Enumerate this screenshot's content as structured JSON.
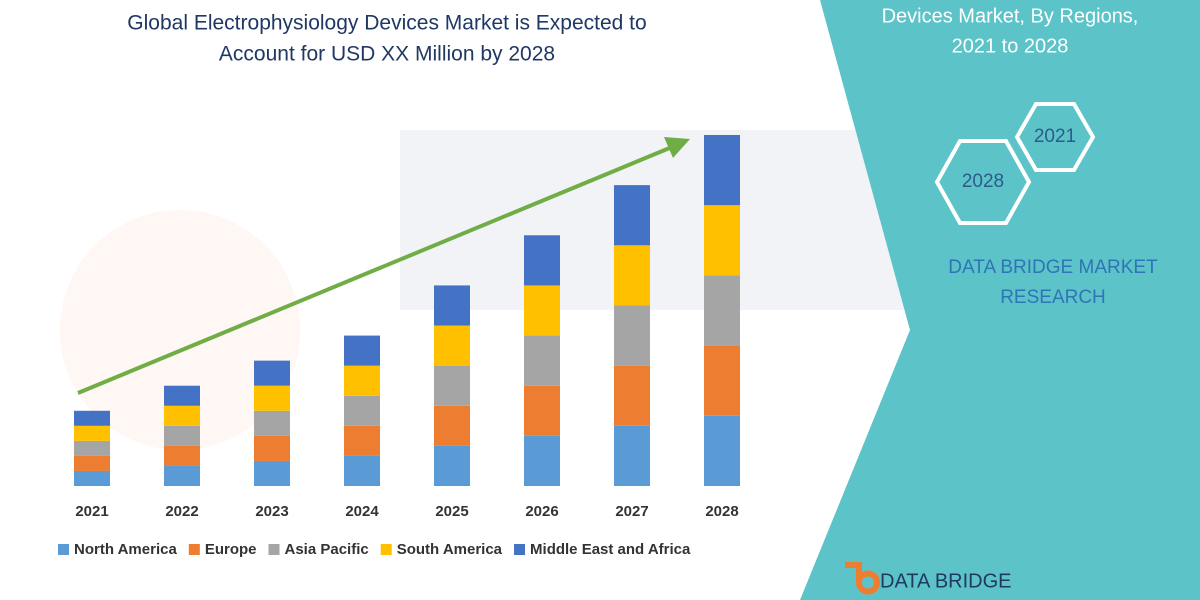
{
  "chart_data": {
    "type": "bar",
    "stacked": true,
    "title": [
      "Global Electrophysiology Devices Market is Expected to",
      "Account for USD XX Million by 2028"
    ],
    "categories": [
      "2021",
      "2022",
      "2023",
      "2024",
      "2025",
      "2026",
      "2027",
      "2028"
    ],
    "series": [
      {
        "name": "North America",
        "color": "#5b9bd5",
        "values": [
          15,
          20,
          25,
          30,
          40,
          50,
          60,
          70
        ]
      },
      {
        "name": "Europe",
        "color": "#ed7d31",
        "values": [
          15,
          20,
          25,
          30,
          40,
          50,
          60,
          70
        ]
      },
      {
        "name": "Asia Pacific",
        "color": "#a5a5a5",
        "values": [
          15,
          20,
          25,
          30,
          40,
          50,
          60,
          70
        ]
      },
      {
        "name": "South America",
        "color": "#ffc000",
        "values": [
          15,
          20,
          25,
          30,
          40,
          50,
          60,
          70
        ]
      },
      {
        "name": "Middle East and Africa",
        "color": "#4472c4",
        "values": [
          15,
          20,
          25,
          30,
          40,
          50,
          60,
          70
        ]
      }
    ],
    "legend": "bottom"
  },
  "panel": {
    "heading": [
      "Devices Market, By Regions,",
      "2021 to 2028"
    ],
    "hexagons": [
      "2021",
      "2028"
    ],
    "brand": [
      "DATA BRIDGE MARKET",
      "RESEARCH"
    ],
    "logo": "DATA BRIDGE"
  }
}
